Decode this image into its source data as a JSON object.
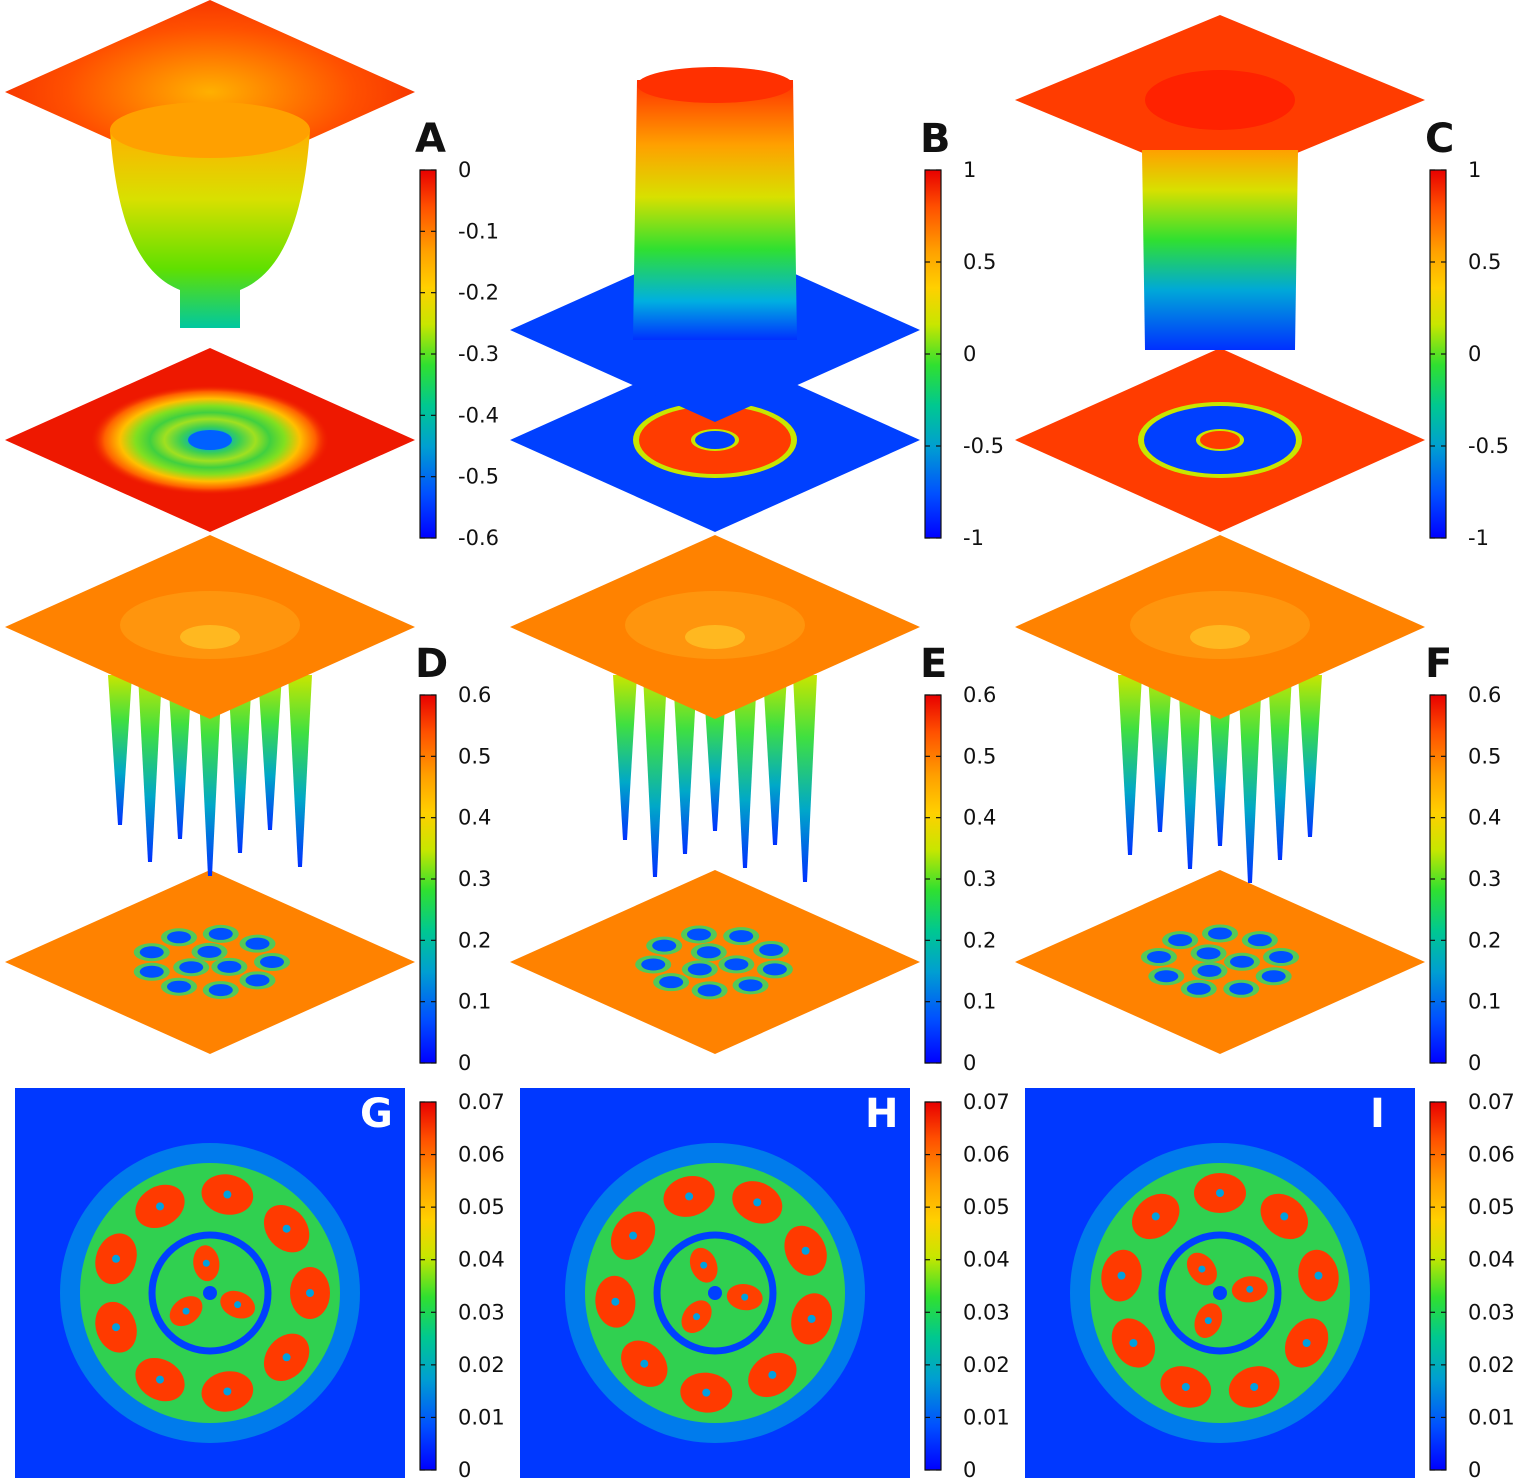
{
  "chart_data": [
    {
      "label": "A",
      "type": "heatmap",
      "view": "3d",
      "ticks": [
        "0",
        "-0.1",
        "-0.2",
        "-0.3",
        "-0.4",
        "-0.5",
        "-0.6"
      ],
      "zlim": [
        -0.6,
        0
      ],
      "pattern": "ring-well"
    },
    {
      "label": "B",
      "type": "heatmap",
      "view": "3d",
      "ticks": [
        "1",
        "0.5",
        "0",
        "-0.5",
        "-1"
      ],
      "zlim": [
        -1,
        1
      ],
      "pattern": "ring-pos"
    },
    {
      "label": "C",
      "type": "heatmap",
      "view": "3d",
      "ticks": [
        "1",
        "0.5",
        "0",
        "-0.5",
        "-1"
      ],
      "zlim": [
        -1,
        1
      ],
      "pattern": "ring-neg"
    },
    {
      "label": "D",
      "type": "heatmap",
      "view": "3d",
      "ticks": [
        "0.6",
        "0.5",
        "0.4",
        "0.3",
        "0.2",
        "0.1",
        "0"
      ],
      "zlim": [
        0,
        0.6
      ],
      "pattern": "vortices",
      "rotation_deg": 0
    },
    {
      "label": "E",
      "type": "heatmap",
      "view": "3d",
      "ticks": [
        "0.6",
        "0.5",
        "0.4",
        "0.3",
        "0.2",
        "0.1",
        "0"
      ],
      "zlim": [
        0,
        0.6
      ],
      "pattern": "vortices",
      "rotation_deg": 15
    },
    {
      "label": "F",
      "type": "heatmap",
      "view": "3d",
      "ticks": [
        "0.6",
        "0.5",
        "0.4",
        "0.3",
        "0.2",
        "0.1",
        "0"
      ],
      "zlim": [
        0,
        0.6
      ],
      "pattern": "vortices",
      "rotation_deg": 30
    },
    {
      "label": "G",
      "type": "heatmap",
      "view": "2d",
      "ticks": [
        "0.07",
        "0.06",
        "0.05",
        "0.04",
        "0.03",
        "0.02",
        "0.01",
        "0"
      ],
      "zlim": [
        0,
        0.07
      ],
      "pattern": "density",
      "rotation_deg": 0
    },
    {
      "label": "H",
      "type": "heatmap",
      "view": "2d",
      "ticks": [
        "0.07",
        "0.06",
        "0.05",
        "0.04",
        "0.03",
        "0.02",
        "0.01",
        "0"
      ],
      "zlim": [
        0,
        0.07
      ],
      "pattern": "density",
      "rotation_deg": 15
    },
    {
      "label": "I",
      "type": "heatmap",
      "view": "2d",
      "ticks": [
        "0.07",
        "0.06",
        "0.05",
        "0.04",
        "0.03",
        "0.02",
        "0.01",
        "0"
      ],
      "zlim": [
        0,
        0.07
      ],
      "pattern": "density",
      "rotation_deg": 30
    }
  ],
  "colormap": [
    "#0000ff",
    "#0050ff",
    "#00a0d0",
    "#00c890",
    "#30e030",
    "#c8e600",
    "#ffd000",
    "#ffa000",
    "#ff5000",
    "#e80000"
  ]
}
